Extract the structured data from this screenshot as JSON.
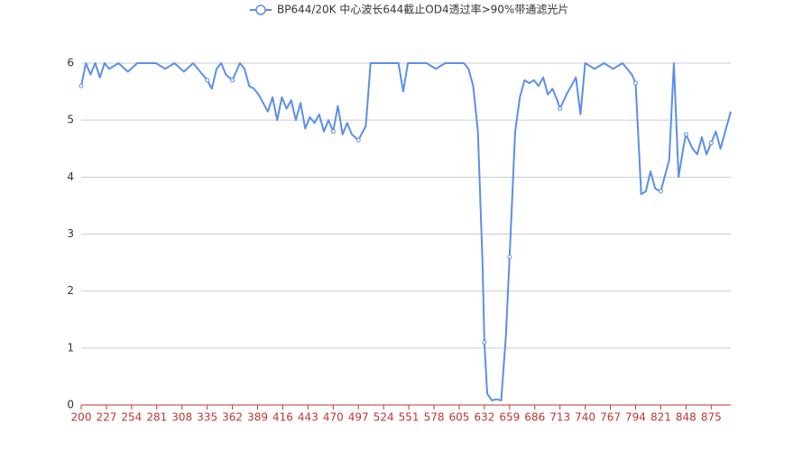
{
  "chart_data": {
    "type": "line",
    "series": [
      {
        "name": "BP644/20K 中心波长644截止OD4透过率>90%带通滤光片",
        "color": "#5b8fe8",
        "values": [
          5.6,
          6,
          5.8,
          6,
          5.75,
          6,
          5.9,
          6,
          5.85,
          6,
          6,
          6,
          5.9,
          6,
          5.85,
          6,
          5.8,
          5.7,
          5.55,
          5.9,
          6,
          5.8,
          5.7,
          6,
          5.9,
          5.6,
          5.55,
          5.45,
          5.3,
          5.15,
          5.4,
          5.0,
          5.4,
          5.2,
          5.35,
          5.0,
          5.3,
          4.85,
          5.05,
          4.95,
          5.1,
          4.8,
          5.0,
          4.8,
          5.25,
          4.75,
          4.95,
          4.75,
          4.65,
          4.9,
          6,
          6,
          6,
          6,
          5.5,
          6,
          6,
          6,
          5.9,
          6,
          6,
          6,
          5.9,
          5.6,
          4.8,
          2.5,
          1.1,
          0.2,
          0.08,
          0.1,
          0.08,
          1.2,
          2.6,
          4.8,
          5.4,
          5.7,
          5.65,
          5.7,
          5.6,
          5.75,
          5.45,
          5.55,
          5.35,
          5.2,
          5.45,
          5.6,
          5.75,
          5.1,
          6,
          5.9,
          6,
          5.9,
          6,
          5.8,
          5.65,
          3.7,
          3.75,
          4.1,
          3.8,
          3.75,
          4.0,
          4.3,
          6,
          4.0,
          4.5,
          4.75,
          4.5,
          4.4,
          4.7,
          4.4,
          4.6,
          4.8,
          4.5,
          4.8,
          5.15
        ]
      }
    ],
    "x": [
      200,
      205,
      210,
      215,
      220,
      225,
      230,
      240,
      250,
      260,
      270,
      280,
      290,
      300,
      310,
      320,
      330,
      335,
      340,
      345,
      350,
      355,
      362,
      370,
      375,
      380,
      385,
      390,
      395,
      400,
      405,
      410,
      415,
      420,
      425,
      430,
      435,
      440,
      445,
      450,
      455,
      460,
      465,
      470,
      475,
      480,
      485,
      490,
      497,
      505,
      510,
      520,
      530,
      540,
      545,
      550,
      560,
      570,
      580,
      590,
      600,
      610,
      615,
      620,
      625,
      630,
      632,
      635,
      640,
      645,
      650,
      655,
      659,
      665,
      670,
      675,
      680,
      685,
      690,
      695,
      700,
      705,
      710,
      713,
      720,
      725,
      730,
      735,
      740,
      750,
      760,
      770,
      780,
      790,
      794,
      800,
      805,
      810,
      815,
      821,
      825,
      830,
      835,
      840,
      845,
      848,
      855,
      860,
      865,
      870,
      875,
      880,
      885,
      890,
      896
    ],
    "xlim": [
      200,
      896
    ],
    "xticks": [
      200,
      227,
      254,
      281,
      308,
      335,
      362,
      389,
      416,
      443,
      470,
      497,
      524,
      551,
      578,
      605,
      632,
      659,
      686,
      713,
      740,
      767,
      794,
      821,
      848,
      875
    ],
    "ylim": [
      0,
      6
    ],
    "yticks": [
      0,
      1,
      2,
      3,
      4,
      5,
      6
    ],
    "grid": true,
    "legend": "top"
  }
}
